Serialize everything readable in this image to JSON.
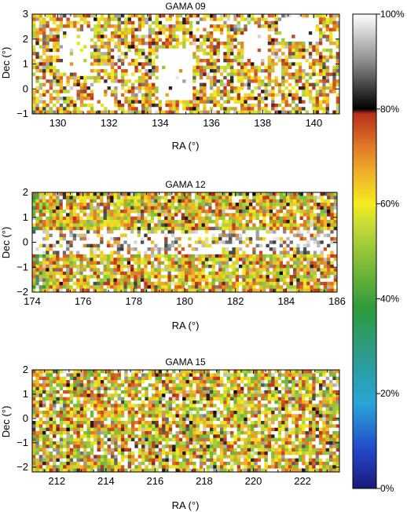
{
  "chart_data": [
    {
      "type": "heatmap",
      "title": "GAMA 09",
      "xlabel": "RA (°)",
      "ylabel": "Dec (°)",
      "xlim": [
        129,
        141
      ],
      "ylim": [
        -1,
        3
      ],
      "xticks": [
        "130",
        "132",
        "134",
        "136",
        "138",
        "140"
      ],
      "yticks": [
        "−1",
        "0",
        "1",
        "2",
        "3"
      ],
      "pattern": "dense mixed completeness across the field, several large empty (100%) holes near RA 130–131, 134–135.5, 137–138"
    },
    {
      "type": "heatmap",
      "title": "GAMA 12",
      "xlabel": "RA (°)",
      "ylabel": "Dec (°)",
      "xlim": [
        174,
        186
      ],
      "ylim": [
        -2,
        2
      ],
      "xticks": [
        "174",
        "176",
        "178",
        "180",
        "182",
        "184",
        "186"
      ],
      "yticks": [
        "−2",
        "−1",
        "0",
        "1",
        "2"
      ],
      "pattern": "horizontal band of mostly white/grey (≈90–100%) cells at Dec ≈ -0.4 to +0.6, yellow/orange/green elsewhere"
    },
    {
      "type": "heatmap",
      "title": "GAMA 15",
      "xlabel": "RA (°)",
      "ylabel": "Dec (°)",
      "xlim": [
        211,
        223.5
      ],
      "ylim": [
        -2.2,
        2
      ],
      "xticks": [
        "212",
        "214",
        "216",
        "218",
        "220",
        "222"
      ],
      "yticks": [
        "−2",
        "−1",
        "0",
        "1",
        "2"
      ],
      "pattern": "mostly yellow/orange/green (55–75%) with scattered dark and white cells"
    }
  ],
  "colorbar": {
    "ticks": [
      "100%",
      "80%",
      "60%",
      "40%",
      "20%",
      "0%"
    ],
    "range": [
      0,
      100
    ],
    "stops": [
      {
        "v": 0,
        "c": "#1a1a7a"
      },
      {
        "v": 8,
        "c": "#2347c9"
      },
      {
        "v": 18,
        "c": "#2aa5d6"
      },
      {
        "v": 28,
        "c": "#2c9c8f"
      },
      {
        "v": 38,
        "c": "#2f9a3a"
      },
      {
        "v": 46,
        "c": "#74b63a"
      },
      {
        "v": 54,
        "c": "#b8d43a"
      },
      {
        "v": 60,
        "c": "#f4ec1f"
      },
      {
        "v": 66,
        "c": "#f0b52a"
      },
      {
        "v": 72,
        "c": "#e07a28"
      },
      {
        "v": 79,
        "c": "#b8301c"
      },
      {
        "v": 80,
        "c": "#000000"
      },
      {
        "v": 90,
        "c": "#8c8c8c"
      },
      {
        "v": 100,
        "c": "#ffffff"
      }
    ]
  }
}
